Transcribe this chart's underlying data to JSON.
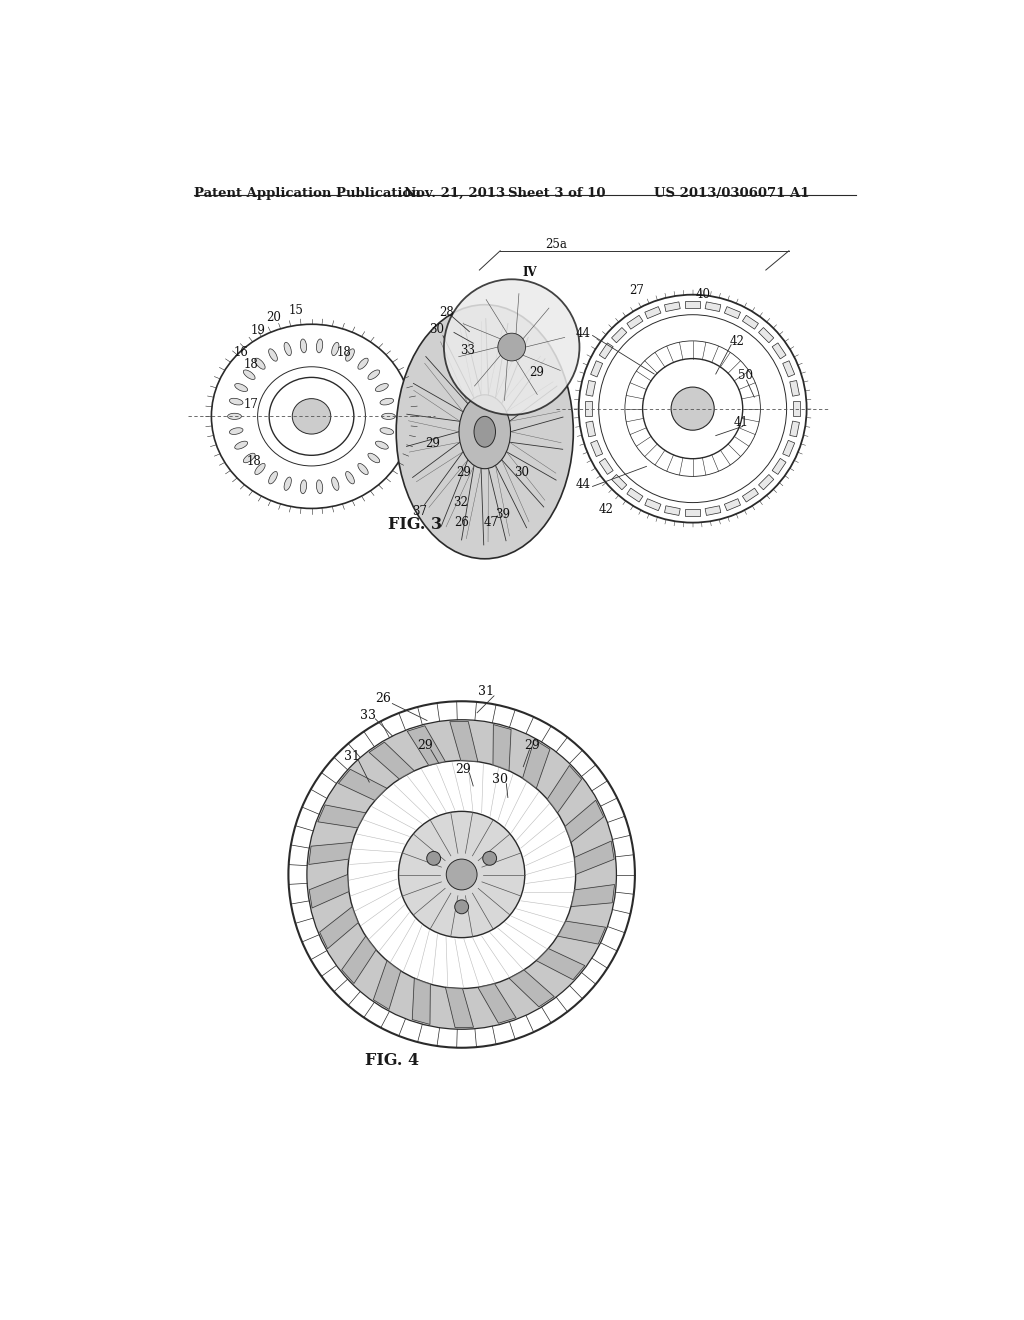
{
  "bg_color": "#ffffff",
  "header_text": "Patent Application Publication",
  "header_date": "Nov. 21, 2013",
  "header_sheet": "Sheet 3 of 10",
  "header_patent": "US 2013/0306071 A1",
  "fig3_label": "FIG. 3",
  "fig4_label": "FIG. 4",
  "text_color": "#1a1a1a",
  "line_color": "#2a2a2a"
}
